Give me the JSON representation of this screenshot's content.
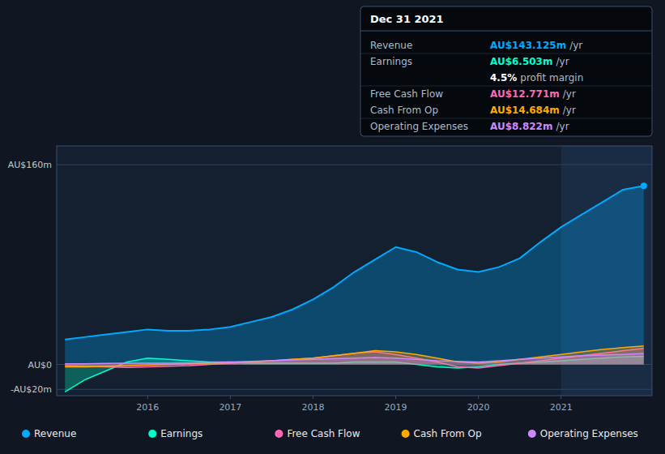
{
  "chart_data": {
    "type": "area",
    "x": [
      2015.0,
      2015.25,
      2015.5,
      2015.75,
      2016.0,
      2016.25,
      2016.5,
      2016.75,
      2017.0,
      2017.25,
      2017.5,
      2017.75,
      2018.0,
      2018.25,
      2018.5,
      2018.75,
      2019.0,
      2019.25,
      2019.5,
      2019.75,
      2020.0,
      2020.25,
      2020.5,
      2020.75,
      2021.0,
      2021.25,
      2021.5,
      2021.75,
      2022.0
    ],
    "series": [
      {
        "name": "Revenue",
        "color": "#00aaff",
        "marker": "end",
        "values": [
          20,
          22,
          24,
          26,
          28,
          27,
          27,
          28,
          30,
          34,
          38,
          44,
          52,
          62,
          74,
          84,
          94,
          90,
          82,
          76,
          74,
          78,
          85,
          98,
          110,
          120,
          130,
          140,
          143
        ]
      },
      {
        "name": "Earnings",
        "color": "#00ffcc",
        "values": [
          -22,
          -12,
          -5,
          2,
          5,
          4,
          3,
          2,
          2,
          1,
          1,
          1,
          1,
          1,
          2,
          2,
          2,
          0,
          -2,
          -3,
          -2,
          0,
          1,
          2,
          3,
          4,
          5,
          6,
          6.5
        ]
      },
      {
        "name": "Free Cash Flow",
        "color": "#ff69b4",
        "values": [
          -1,
          -1.5,
          -2,
          -2.5,
          -2,
          -1.5,
          -1,
          0,
          1,
          2,
          3,
          4,
          5,
          7,
          9,
          10,
          8,
          5,
          2,
          -2,
          -3,
          -1,
          1,
          3,
          5,
          7,
          9,
          11,
          12.8
        ]
      },
      {
        "name": "Cash From Op",
        "color": "#ffaa00",
        "values": [
          -2,
          -2,
          -1.5,
          -1,
          -0.5,
          0,
          0.5,
          1,
          1.5,
          2,
          3,
          4,
          5,
          7,
          9,
          11,
          10,
          8,
          5,
          2,
          1,
          2,
          4,
          6,
          8,
          10,
          12,
          13.5,
          14.7
        ]
      },
      {
        "name": "Operating Expenses",
        "color": "#cc88ff",
        "values": [
          0.5,
          0.5,
          0.8,
          1,
          1,
          1,
          1.2,
          1.5,
          2,
          2.5,
          3,
          3.5,
          4,
          4.5,
          5,
          5.5,
          5,
          4,
          3,
          2.5,
          2,
          3,
          4,
          5,
          6,
          7,
          7.5,
          8,
          8.8
        ]
      }
    ],
    "xlim": [
      2014.9,
      2022.1
    ],
    "xticks": [
      2016,
      2017,
      2018,
      2019,
      2020,
      2021
    ],
    "ylim": [
      -25,
      175
    ],
    "yticks": [
      {
        "value": -20,
        "label": "-AU$20m"
      },
      {
        "value": 0,
        "label": "AU$0"
      },
      {
        "value": 160,
        "label": "AU$160m"
      }
    ],
    "highlight_from": 2021.0,
    "grid": true,
    "legend": "bottom",
    "annotations": [
      {
        "title": "Dec 31 2021",
        "rows": [
          {
            "label": "Revenue",
            "text": "AU$143.125m",
            "unit": "/yr",
            "color": "#00aaff"
          },
          {
            "label": "Earnings",
            "text": "AU$6.503m",
            "unit": "/yr",
            "color": "#00ffcc"
          },
          {
            "text": "4.5%",
            "unit": "profit margin",
            "color": "#ffffff"
          },
          {
            "label": "Free Cash Flow",
            "text": "AU$12.771m",
            "unit": "/yr",
            "color": "#ff69b4"
          },
          {
            "label": "Cash From Op",
            "text": "AU$14.684m",
            "unit": "/yr",
            "color": "#ffaa00"
          },
          {
            "label": "Operating Expenses",
            "text": "AU$8.822m",
            "unit": "/yr",
            "color": "#cc88ff"
          }
        ]
      }
    ]
  }
}
